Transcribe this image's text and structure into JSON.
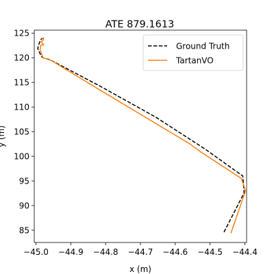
{
  "chart_data": {
    "type": "line",
    "title": "ATE 879.1613",
    "xlabel": "x (m)",
    "ylabel": "y (m)",
    "xlim": [
      -45.005,
      -44.395
    ],
    "ylim": [
      82.5,
      125.6
    ],
    "xticks": [
      -45.0,
      -44.9,
      -44.8,
      -44.7,
      -44.6,
      -44.5,
      -44.4
    ],
    "xtick_labels": [
      "−45.0",
      "−44.9",
      "−44.8",
      "−44.7",
      "−44.6",
      "−44.5",
      "−44.4"
    ],
    "yticks": [
      85,
      90,
      95,
      100,
      105,
      110,
      115,
      120,
      125
    ],
    "ytick_labels": [
      "85",
      "90",
      "95",
      "100",
      "105",
      "110",
      "115",
      "120",
      "125"
    ],
    "grid": false,
    "legend_position": "top-right",
    "series": [
      {
        "name": "Ground Truth",
        "color": "#000000",
        "style": "dashed",
        "x": [
          -44.46,
          -44.402,
          -44.406,
          -44.515,
          -44.655,
          -44.815,
          -44.96,
          -44.98,
          -44.985,
          -44.995,
          -44.99,
          -44.985,
          -44.978
        ],
        "y": [
          84.6,
          92.6,
          96.0,
          101.5,
          107.9,
          114.2,
          119.6,
          120.0,
          120.3,
          121.9,
          123.1,
          123.8,
          124.0
        ]
      },
      {
        "name": "TartanVO",
        "color": "#ff7f0e",
        "style": "solid",
        "x": [
          -44.44,
          -44.398,
          -44.41,
          -44.525,
          -44.56,
          -44.82,
          -44.955,
          -44.98,
          -44.982,
          -44.988,
          -44.986,
          -44.978,
          -44.985,
          -44.98,
          -44.978,
          -44.983
        ],
        "y": [
          84.4,
          93.0,
          95.5,
          100.8,
          102.6,
          113.6,
          119.4,
          120.0,
          120.4,
          121.6,
          122.6,
          122.6,
          123.2,
          123.5,
          123.8,
          124.0
        ]
      }
    ]
  }
}
